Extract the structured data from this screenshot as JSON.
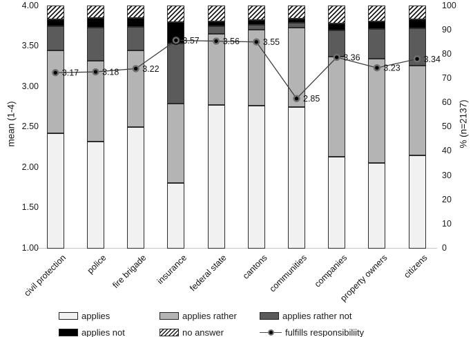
{
  "chart_data": {
    "type": "bar",
    "subtype": "100%-stacked bars with overlaid mean line",
    "title": "",
    "categories": [
      "civil protection",
      "police",
      "fire brigade",
      "insurance",
      "federal state",
      "cantons",
      "communities",
      "companies",
      "property owners",
      "citizens"
    ],
    "stack_order_bottom_to_top": [
      "applies",
      "applies rather",
      "applies rather not",
      "applies not",
      "no answer"
    ],
    "series": [
      {
        "name": "applies",
        "color": "#f1f1f1",
        "values_pct": [
          47.3,
          44.0,
          50.0,
          27.0,
          59.0,
          58.7,
          58.3,
          37.7,
          35.0,
          38.3
        ]
      },
      {
        "name": "applies rather",
        "color": "#b4b4b4",
        "values_pct": [
          34.3,
          33.3,
          31.7,
          32.7,
          29.3,
          31.3,
          32.7,
          41.3,
          43.0,
          37.0
        ]
      },
      {
        "name": "applies rather not",
        "color": "#5b5b5b",
        "values_pct": [
          10.0,
          13.7,
          9.7,
          24.7,
          3.3,
          2.0,
          2.0,
          10.7,
          12.3,
          15.3
        ]
      },
      {
        "name": "applies not",
        "color": "#000000",
        "values_pct": [
          2.7,
          4.0,
          3.7,
          9.0,
          2.0,
          2.0,
          1.7,
          3.0,
          3.3,
          3.7
        ]
      },
      {
        "name": "no answer",
        "color": "hatched-black-on-white",
        "values_pct": [
          5.7,
          5.0,
          5.0,
          6.7,
          6.3,
          6.0,
          5.3,
          7.3,
          6.3,
          5.7
        ]
      }
    ],
    "line_series": {
      "name": "fulfills responsibiliity",
      "axis": "left (mean 1-4)",
      "values": [
        3.17,
        3.18,
        3.22,
        3.57,
        3.56,
        3.55,
        2.85,
        3.36,
        3.23,
        3.34
      ],
      "labels": [
        "3.17",
        "3.18",
        "3.22",
        "3.57",
        "3.56",
        "3.55",
        "2.85",
        "3.36",
        "3.23",
        "3.34"
      ]
    },
    "axes": {
      "left": {
        "title": "mean (1-4)",
        "min": 1,
        "max": 4,
        "ticks": [
          "4.00",
          "3.50",
          "3.00",
          "2.50",
          "2.00",
          "1.50",
          "1.00"
        ]
      },
      "right": {
        "title": "% (n=2137)",
        "min": 0,
        "max": 100,
        "ticks": [
          "100",
          "90",
          "80",
          "70",
          "60",
          "50",
          "40",
          "30",
          "20",
          "10",
          "0"
        ]
      }
    },
    "grid": false,
    "legend_position": "bottom"
  },
  "legend": {
    "rows": [
      [
        {
          "label": "applies",
          "swatch": "solid-light"
        },
        {
          "label": "applies rather",
          "swatch": "solid-medium"
        },
        {
          "label": "applies rather not",
          "swatch": "solid-dark"
        }
      ],
      [
        {
          "label": "applies not",
          "swatch": "solid-black"
        },
        {
          "label": "no answer",
          "swatch": "hatch"
        },
        {
          "label": "fulfills responsibiliity",
          "swatch": "line-marker"
        }
      ]
    ]
  },
  "colors": {
    "applies": "#f1f1f1",
    "applies_rather": "#b4b4b4",
    "applies_rather_not": "#5b5b5b",
    "applies_not": "#000000",
    "bar_border": "#2b2b2b",
    "line": "#404040",
    "marker_halo": "#6f6f6f",
    "baseline": "#c4c4c4",
    "text": "#1a1a1a"
  }
}
